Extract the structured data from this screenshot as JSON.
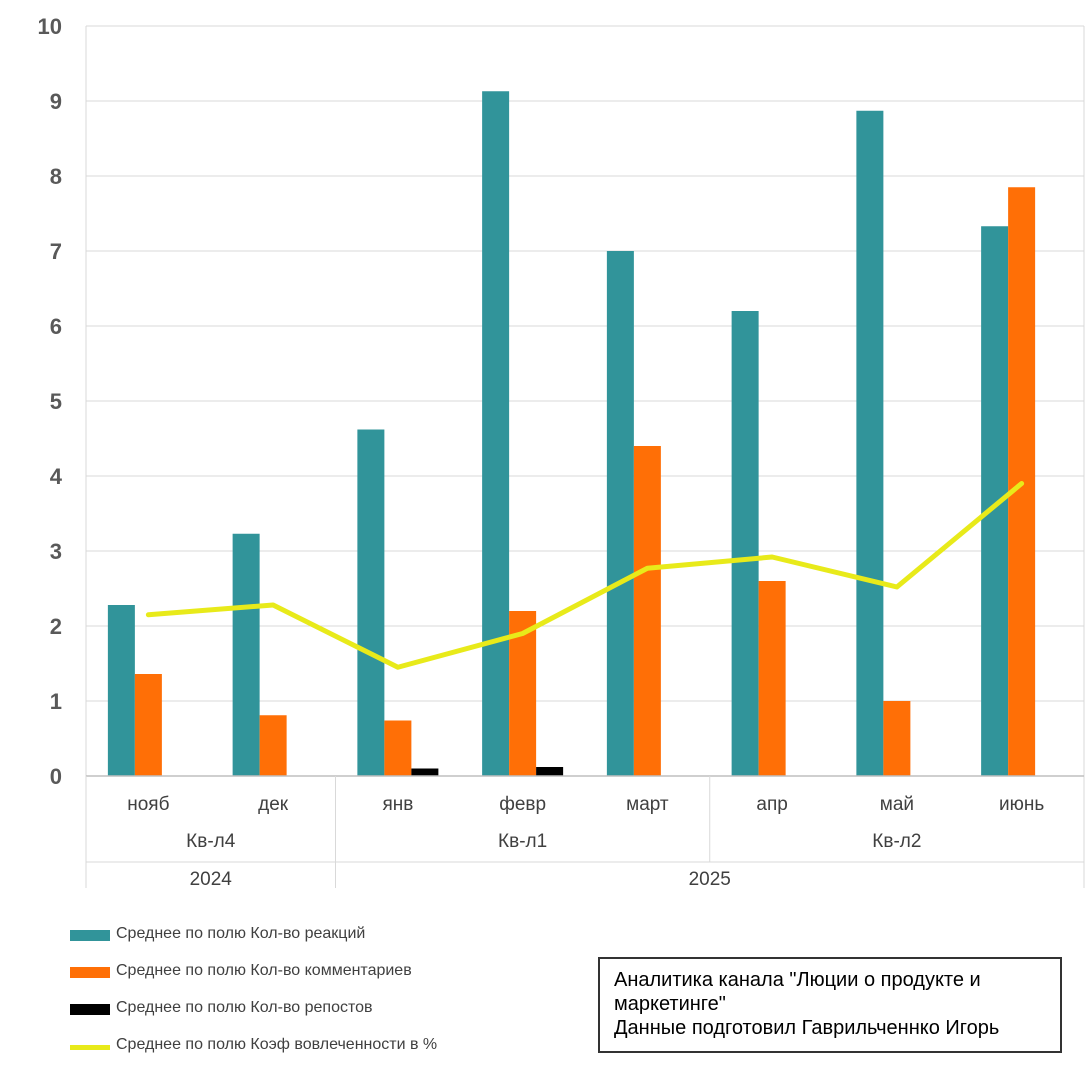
{
  "chart_data": {
    "type": "bar+line",
    "yaxis": {
      "min": 0,
      "max": 10,
      "step": 1,
      "grid": true
    },
    "categories": [
      "нояб",
      "дек",
      "янв",
      "февр",
      "март",
      "апр",
      "май",
      "июнь"
    ],
    "quarters": [
      {
        "label": "Кв-л4",
        "span": [
          0,
          1
        ]
      },
      {
        "label": "Кв-л1",
        "span": [
          2,
          4
        ]
      },
      {
        "label": "Кв-л2",
        "span": [
          5,
          7
        ]
      }
    ],
    "years": [
      {
        "label": "2024",
        "span": [
          0,
          1
        ]
      },
      {
        "label": "2025",
        "span": [
          2,
          7
        ]
      }
    ],
    "series": [
      {
        "name": "Среднее по полю Кол-во реакций",
        "type": "bar",
        "color": "#31949a",
        "values": [
          2.28,
          3.23,
          4.62,
          9.13,
          7.0,
          6.2,
          8.87,
          7.33
        ]
      },
      {
        "name": "Среднее по полю Кол-во комментариев",
        "type": "bar",
        "color": "#ff6f06",
        "values": [
          1.36,
          0.81,
          0.74,
          2.2,
          4.4,
          2.6,
          1.0,
          7.85
        ]
      },
      {
        "name": "Среднее по полю Кол-во репостов",
        "type": "bar",
        "color": "#000000",
        "values": [
          0,
          0,
          0.1,
          0.12,
          0,
          0,
          0,
          0
        ]
      },
      {
        "name": "Среднее по полю Коэф вовлеченности в %",
        "type": "line",
        "color": "#e8ea1a",
        "values": [
          2.15,
          2.28,
          1.45,
          1.9,
          2.77,
          2.92,
          2.52,
          3.9
        ]
      }
    ]
  },
  "note": {
    "line1": "Аналитика канала \"Люции о продукте и",
    "line2": "маркетинге\"",
    "line3": "Данные подготовил Гаврильченнко Игорь"
  }
}
